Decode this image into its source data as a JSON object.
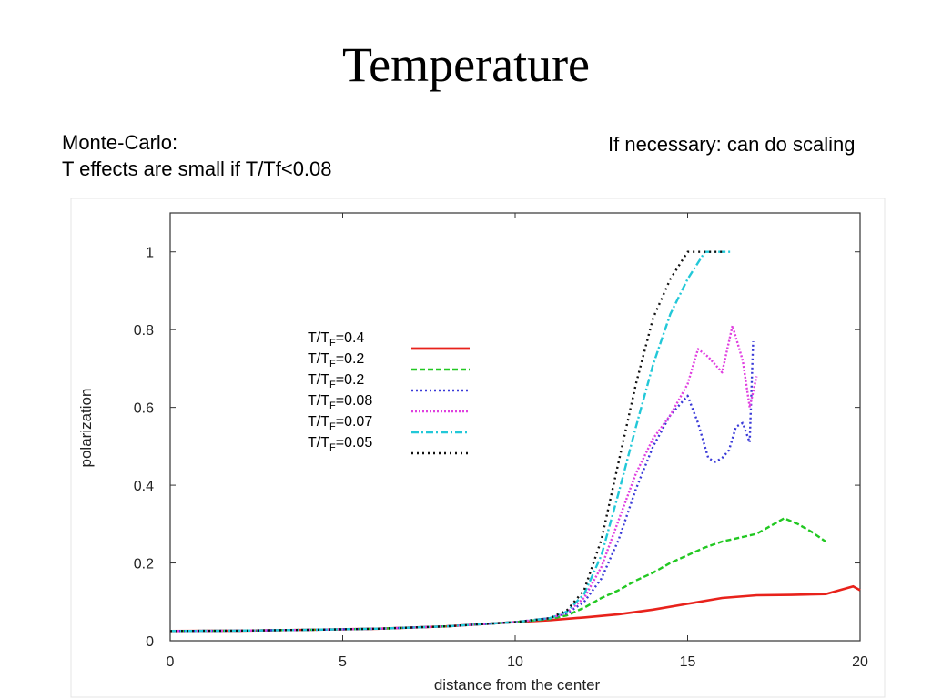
{
  "slide": {
    "title": "Temperature",
    "note_left": [
      "Monte-Carlo:",
      "T effects are small if T/Tf<0.08"
    ],
    "note_right": "If necessary: can do scaling"
  },
  "chart_data": {
    "type": "line",
    "xlabel": "distance from the center",
    "ylabel": "polarization",
    "xlim": [
      0,
      20
    ],
    "ylim": [
      0,
      1.1
    ],
    "xticks": [
      0,
      5,
      10,
      15,
      20
    ],
    "yticks": [
      0,
      0.2,
      0.4,
      0.6,
      0.8,
      1
    ],
    "grid": false,
    "legend_position": "upper-left",
    "series": [
      {
        "label_prefix": "T/T",
        "label_sub": "F",
        "label_value": "=0.4",
        "color": "#e8221b",
        "dash": "none",
        "x": [
          0,
          2,
          4,
          6,
          8,
          10,
          11,
          12,
          13,
          14,
          15,
          16,
          17,
          18,
          19,
          19.8,
          20
        ],
        "y": [
          0.025,
          0.026,
          0.028,
          0.031,
          0.037,
          0.048,
          0.053,
          0.06,
          0.068,
          0.08,
          0.095,
          0.11,
          0.117,
          0.118,
          0.12,
          0.14,
          0.13
        ]
      },
      {
        "label_prefix": "T/T",
        "label_sub": "F",
        "label_value": "=0.2",
        "color": "#22c822",
        "dash": "6 3",
        "x": [
          0,
          2,
          4,
          6,
          8,
          10,
          11,
          11.5,
          12,
          12.5,
          13,
          13.5,
          14,
          14.5,
          15,
          15.5,
          16,
          16.5,
          17,
          17.5,
          17.8,
          18.2,
          18.6,
          19
        ],
        "y": [
          0.025,
          0.026,
          0.028,
          0.031,
          0.037,
          0.048,
          0.056,
          0.065,
          0.085,
          0.11,
          0.13,
          0.155,
          0.175,
          0.2,
          0.22,
          0.24,
          0.255,
          0.265,
          0.275,
          0.3,
          0.315,
          0.3,
          0.28,
          0.255
        ]
      },
      {
        "label_prefix": "T/T",
        "label_sub": "F",
        "label_value": "=0.2",
        "color": "#3a3ad8",
        "dash": "2 3",
        "x": [
          0,
          2,
          4,
          6,
          8,
          10,
          11,
          11.5,
          12,
          12.5,
          13,
          13.5,
          14,
          14.5,
          15,
          15.3,
          15.6,
          15.8,
          16,
          16.2,
          16.4,
          16.6,
          16.8,
          16.9
        ],
        "y": [
          0.025,
          0.026,
          0.028,
          0.031,
          0.037,
          0.048,
          0.058,
          0.07,
          0.1,
          0.16,
          0.26,
          0.39,
          0.5,
          0.58,
          0.63,
          0.56,
          0.47,
          0.46,
          0.47,
          0.49,
          0.55,
          0.56,
          0.51,
          0.77
        ]
      },
      {
        "label_prefix": "T/T",
        "label_sub": "F",
        "label_value": "=0.08",
        "color": "#e040e0",
        "dash": "2 2",
        "x": [
          0,
          2,
          4,
          6,
          8,
          10,
          11,
          11.5,
          12,
          12.5,
          13,
          13.5,
          14,
          14.5,
          15,
          15.3,
          15.6,
          16,
          16.3,
          16.6,
          16.8,
          17
        ],
        "y": [
          0.025,
          0.026,
          0.028,
          0.031,
          0.037,
          0.048,
          0.058,
          0.072,
          0.11,
          0.19,
          0.31,
          0.43,
          0.52,
          0.58,
          0.66,
          0.75,
          0.73,
          0.69,
          0.81,
          0.72,
          0.6,
          0.68
        ]
      },
      {
        "label_prefix": "T/T",
        "label_sub": "F",
        "label_value": "=0.07",
        "color": "#22c8d8",
        "dash": "8 3 2 3",
        "x": [
          0,
          2,
          4,
          6,
          8,
          10,
          11,
          11.5,
          12,
          12.5,
          13,
          13.5,
          14,
          14.5,
          15,
          15.5,
          16,
          16.3
        ],
        "y": [
          0.025,
          0.026,
          0.028,
          0.031,
          0.037,
          0.048,
          0.058,
          0.075,
          0.12,
          0.22,
          0.38,
          0.55,
          0.71,
          0.84,
          0.93,
          1.0,
          1.0,
          1.0
        ]
      },
      {
        "label_prefix": "T/T",
        "label_sub": "F",
        "label_value": "=0.05",
        "color": "#111111",
        "dash": "2 4",
        "x": [
          0,
          2,
          4,
          6,
          8,
          10,
          11,
          11.5,
          12,
          12.5,
          13,
          13.5,
          14,
          14.5,
          15,
          15.5,
          16
        ],
        "y": [
          0.025,
          0.026,
          0.028,
          0.031,
          0.037,
          0.048,
          0.058,
          0.078,
          0.13,
          0.26,
          0.46,
          0.66,
          0.83,
          0.93,
          1.0,
          1.0,
          1.0
        ]
      }
    ]
  }
}
